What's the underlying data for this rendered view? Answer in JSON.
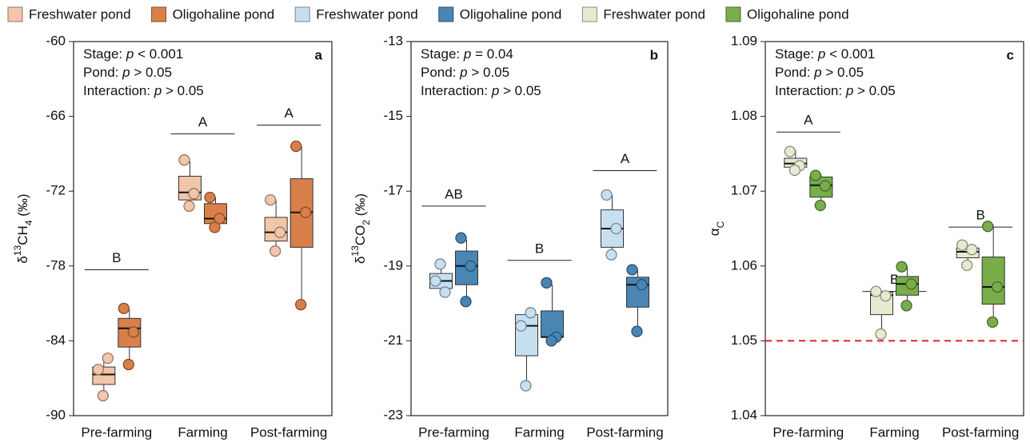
{
  "chart_data": [
    {
      "type": "box",
      "panel": "a",
      "ylabel": [
        "δ",
        "13",
        "CH",
        "4",
        " (‰)"
      ],
      "annotations": [
        [
          "Stage: ",
          "p",
          " < 0.001"
        ],
        [
          "Pond: ",
          "p",
          " > 0.05"
        ],
        [
          "Interaction: ",
          "p",
          " > 0.05"
        ]
      ],
      "categories": [
        "Pre-farming",
        "Farming",
        "Post-farming"
      ],
      "ylim": [
        -90,
        -60
      ],
      "yticks": [
        -90,
        -84,
        -78,
        -72,
        -66,
        -60
      ],
      "series": [
        {
          "name": "Freshwater pond",
          "color": "#f2c6a9",
          "values": [
            {
              "min": -88.4,
              "q1": -87.5,
              "median": -86.7,
              "q3": -86.1,
              "max": -85.4,
              "points": [
                -86.3,
                -85.4,
                -88.4
              ]
            },
            {
              "min": -73.5,
              "q1": -72.7,
              "median": -72.1,
              "q3": -70.8,
              "max": -69.6,
              "points": [
                -69.5,
                -72.2,
                -73.2
              ]
            },
            {
              "min": -76.8,
              "q1": -76.0,
              "median": -75.3,
              "q3": -74.1,
              "max": -72.7,
              "points": [
                -72.7,
                -75.3,
                -76.8
              ]
            }
          ]
        },
        {
          "name": "Oligohaline pond",
          "color": "#d9804a",
          "values": [
            {
              "min": -85.9,
              "q1": -84.5,
              "median": -83.0,
              "q3": -82.2,
              "max": -81.5,
              "points": [
                -81.4,
                -83.3,
                -85.9
              ]
            },
            {
              "min": -75.0,
              "q1": -74.6,
              "median": -74.2,
              "q3": -73.0,
              "max": -72.5,
              "points": [
                -72.5,
                -74.2,
                -74.9
              ]
            },
            {
              "min": -81.1,
              "q1": -76.5,
              "median": -73.7,
              "q3": -71.0,
              "max": -68.4,
              "points": [
                -68.4,
                -73.7,
                -81.1
              ]
            }
          ]
        }
      ],
      "letters": [
        {
          "label": "B",
          "value": -78.3
        },
        {
          "label": "A",
          "value": -67.4
        },
        {
          "label": "A",
          "value": -66.7
        }
      ]
    },
    {
      "type": "box",
      "panel": "b",
      "ylabel": [
        "δ",
        "13",
        "CO",
        "2",
        " (‰)"
      ],
      "annotations": [
        [
          "Stage: ",
          "p",
          " = 0.04"
        ],
        [
          "Pond: ",
          "p",
          " > 0.05"
        ],
        [
          "Interaction: ",
          "p",
          " > 0.05"
        ]
      ],
      "categories": [
        "Pre-farming",
        "Farming",
        "Post-farming"
      ],
      "ylim": [
        -23,
        -13
      ],
      "yticks": [
        -23,
        -21,
        -19,
        -17,
        -15,
        -13
      ],
      "series": [
        {
          "name": "Freshwater pond",
          "color": "#c6e0f2",
          "values": [
            {
              "min": -19.7,
              "q1": -19.6,
              "median": -19.4,
              "q3": -19.2,
              "max": -18.95,
              "points": [
                -19.4,
                -19.7,
                -18.95
              ]
            },
            {
              "min": -22.2,
              "q1": -21.4,
              "median": -20.6,
              "q3": -20.3,
              "max": -20.2,
              "points": [
                -20.6,
                -20.25,
                -22.2
              ]
            },
            {
              "min": -18.7,
              "q1": -18.5,
              "median": -18.0,
              "q3": -17.5,
              "max": -17.1,
              "points": [
                -17.1,
                -18.0,
                -18.7
              ]
            }
          ]
        },
        {
          "name": "Oligohaline pond",
          "color": "#4a86b4",
          "values": [
            {
              "min": -19.9,
              "q1": -19.5,
              "median": -19.0,
              "q3": -18.6,
              "max": -18.3,
              "points": [
                -18.25,
                -19.0,
                -19.95
              ]
            },
            {
              "min": -21.0,
              "q1": -20.9,
              "median": -20.9,
              "q3": -20.2,
              "max": -19.5,
              "points": [
                -19.45,
                -20.9,
                -21.0
              ]
            },
            {
              "min": -20.7,
              "q1": -20.1,
              "median": -19.5,
              "q3": -19.3,
              "max": -19.1,
              "points": [
                -19.1,
                -19.5,
                -20.75
              ]
            }
          ]
        }
      ],
      "letters": [
        {
          "label": "AB",
          "value": -17.4
        },
        {
          "label": "B",
          "value": -18.85
        },
        {
          "label": "A",
          "value": -16.45
        }
      ]
    },
    {
      "type": "box",
      "panel": "c",
      "ylabel": [
        "α",
        "C"
      ],
      "annotations": [
        [
          "Stage: ",
          "p",
          " < 0.001"
        ],
        [
          "Pond: ",
          "p",
          " > 0.05"
        ],
        [
          "Interaction: ",
          "p",
          " > 0.05"
        ]
      ],
      "categories": [
        "Pre-farming",
        "Farming",
        "Post-farming"
      ],
      "ylim": [
        1.04,
        1.09
      ],
      "yticks": [
        1.04,
        1.05,
        1.06,
        1.07,
        1.08,
        1.09
      ],
      "series": [
        {
          "name": "Freshwater pond",
          "color": "#e6ead0",
          "values": [
            {
              "min": 1.0729,
              "q1": 1.0732,
              "median": 1.0737,
              "q3": 1.0744,
              "max": 1.0755,
              "points": [
                1.0753,
                1.0734,
                1.0728
              ]
            },
            {
              "min": 1.0508,
              "q1": 1.0535,
              "median": 1.0561,
              "q3": 1.0565,
              "max": 1.0567,
              "points": [
                1.0566,
                1.056,
                1.0509
              ]
            },
            {
              "min": 1.06,
              "q1": 1.0611,
              "median": 1.0619,
              "q3": 1.0624,
              "max": 1.0628,
              "points": [
                1.0628,
                1.0622,
                1.0601
              ]
            }
          ]
        },
        {
          "name": "Oligohaline pond",
          "color": "#79ad4a",
          "values": [
            {
              "min": 1.068,
              "q1": 1.0692,
              "median": 1.0708,
              "q3": 1.0719,
              "max": 1.0722,
              "points": [
                1.0721,
                1.0707,
                1.0681
              ]
            },
            {
              "min": 1.0547,
              "q1": 1.0561,
              "median": 1.0576,
              "q3": 1.0586,
              "max": 1.06,
              "points": [
                1.0599,
                1.0576,
                1.0547
              ]
            },
            {
              "min": 1.0524,
              "q1": 1.0549,
              "median": 1.0572,
              "q3": 1.0612,
              "max": 1.0655,
              "points": [
                1.0653,
                1.0572,
                1.0525
              ]
            }
          ]
        }
      ],
      "letters": [
        {
          "label": "A",
          "value": 1.0779
        },
        {
          "label": "B",
          "value": 1.0566
        },
        {
          "label": "B",
          "value": 1.0652
        }
      ],
      "reference_line": {
        "value": 1.05,
        "color": "#e02020",
        "style": "dashed"
      }
    }
  ]
}
